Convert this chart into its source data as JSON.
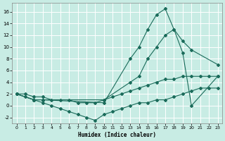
{
  "xlabel": "Humidex (Indice chaleur)",
  "bg_color": "#c8ece4",
  "grid_color": "#ffffff",
  "line_color": "#1a6b5a",
  "xlim": [
    -0.5,
    23.5
  ],
  "ylim": [
    -3.0,
    17.5
  ],
  "xticks": [
    0,
    1,
    2,
    3,
    4,
    5,
    6,
    7,
    8,
    9,
    10,
    11,
    12,
    13,
    14,
    15,
    16,
    17,
    18,
    19,
    20,
    21,
    22,
    23
  ],
  "yticks": [
    -2,
    0,
    2,
    4,
    6,
    8,
    10,
    12,
    14,
    16
  ],
  "series": [
    {
      "x": [
        0,
        1,
        2,
        3,
        4,
        5,
        6,
        7,
        8,
        9,
        10,
        11,
        12,
        13,
        14,
        15,
        16,
        17,
        18,
        19,
        20,
        21,
        22,
        23
      ],
      "y": [
        2,
        1.5,
        1,
        0.5,
        0,
        -0.5,
        -1,
        -1.5,
        -2,
        -2.5,
        -1.5,
        -1,
        -0.5,
        0,
        0.5,
        0.5,
        1,
        1,
        1.5,
        2,
        2.5,
        3,
        3,
        3
      ]
    },
    {
      "x": [
        0,
        1,
        2,
        3,
        4,
        5,
        6,
        7,
        8,
        9,
        10,
        11,
        12,
        13,
        14,
        15,
        16,
        17,
        18,
        19,
        20,
        21,
        22,
        23
      ],
      "y": [
        2,
        2,
        1.5,
        1.5,
        1,
        1,
        1,
        0.5,
        0.5,
        0.5,
        1,
        1.5,
        2,
        2.5,
        3,
        3.5,
        4,
        4.5,
        4.5,
        5,
        5,
        5,
        5,
        5
      ]
    },
    {
      "x": [
        0,
        2,
        3,
        10,
        13,
        14,
        15,
        16,
        17,
        18,
        19,
        20,
        23
      ],
      "y": [
        2,
        1,
        1,
        1,
        4,
        5,
        8,
        10,
        12,
        13,
        11,
        9.5,
        7
      ]
    },
    {
      "x": [
        0,
        2,
        3,
        10,
        13,
        14,
        15,
        16,
        17,
        18,
        19,
        20,
        23
      ],
      "y": [
        2,
        1,
        1,
        0.5,
        8,
        10,
        13,
        15.5,
        16.5,
        13,
        9,
        0,
        5
      ]
    }
  ]
}
